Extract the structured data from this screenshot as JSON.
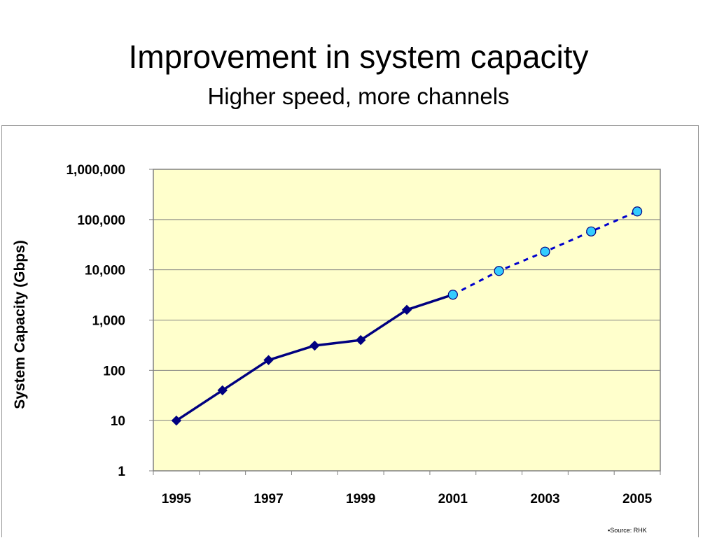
{
  "slide": {
    "title": "Improvement in system capacity",
    "subtitle": "Higher speed, more channels",
    "source_note": "Source: RHK"
  },
  "chart_data": {
    "type": "line",
    "title": "",
    "xlabel": "",
    "ylabel": "System Capacity (Gbps)",
    "y_scale": "log",
    "ylim": [
      1,
      1000000
    ],
    "xlim": [
      1995,
      2005
    ],
    "yticks": [
      1,
      10,
      100,
      1000,
      10000,
      100000,
      1000000
    ],
    "ytick_labels": [
      "1",
      "10",
      "100",
      "1,000",
      "10,000",
      "100,000",
      "1,000,000"
    ],
    "xtick_labels": [
      "1995",
      "1997",
      "1999",
      "2001",
      "2003",
      "2005"
    ],
    "grid": "horizontal",
    "plot_background": "#FFFFCC",
    "series": [
      {
        "style": "solid",
        "marker": "diamond",
        "color": "#000080",
        "x": [
          1995,
          1996,
          1997,
          1998,
          1999,
          2000,
          2001
        ],
        "y": [
          10,
          40,
          160,
          310,
          400,
          1600,
          3200
        ]
      },
      {
        "style": "dotted",
        "marker": "circle",
        "color": "#0000CC",
        "marker_color": "#33CCFF",
        "x": [
          2001,
          2002,
          2003,
          2004,
          2005
        ],
        "y": [
          3200,
          9500,
          23000,
          58000,
          145000
        ]
      }
    ]
  }
}
